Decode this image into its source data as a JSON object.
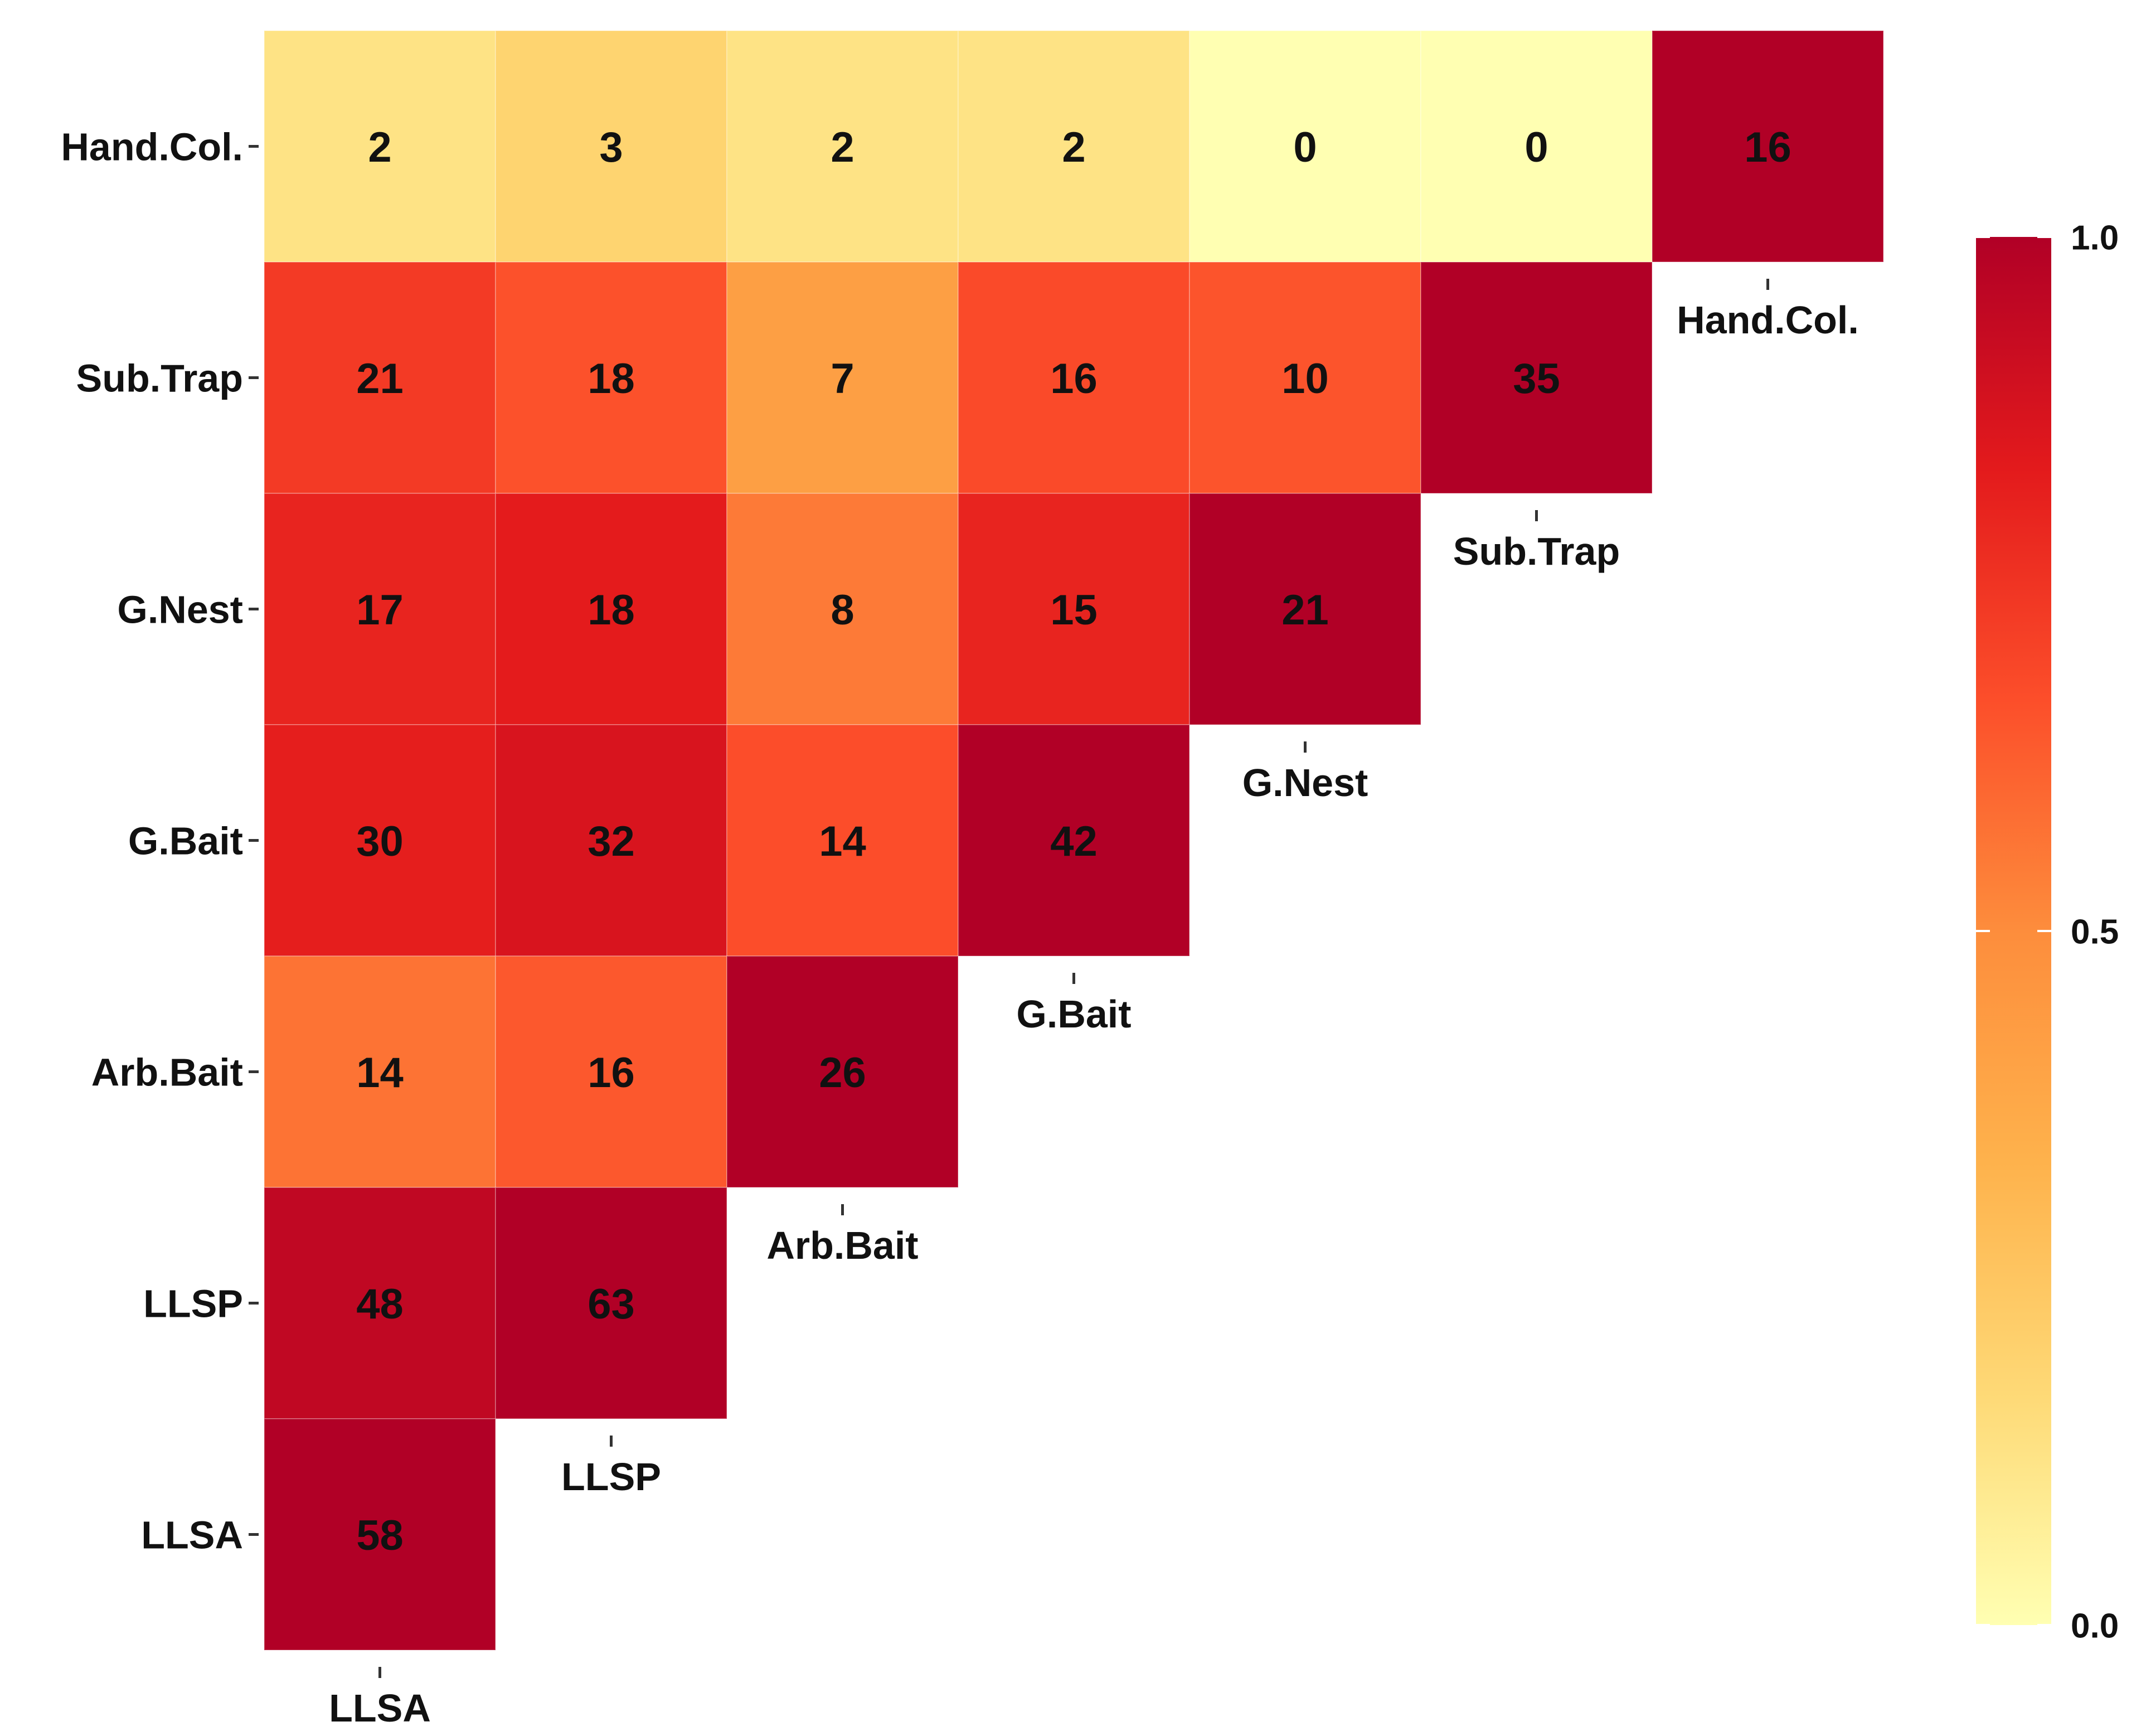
{
  "chart_data": {
    "type": "heatmap",
    "title": "",
    "xlabel": "",
    "ylabel": "",
    "row_labels": [
      "Hand.Col.",
      "Sub.Trap",
      "G.Nest",
      "G.Bait",
      "Arb.Bait",
      "LLSP",
      "LLSA"
    ],
    "col_labels": [
      "LLSA",
      "LLSP",
      "Arb.Bait",
      "G.Bait",
      "G.Nest",
      "Sub.Trap",
      "Hand.Col."
    ],
    "cells": [
      {
        "row": "Hand.Col.",
        "col": "LLSA",
        "label": "2",
        "value": 0.125
      },
      {
        "row": "Hand.Col.",
        "col": "LLSP",
        "label": "3",
        "value": 0.19
      },
      {
        "row": "Hand.Col.",
        "col": "Arb.Bait",
        "label": "2",
        "value": 0.125
      },
      {
        "row": "Hand.Col.",
        "col": "G.Bait",
        "label": "2",
        "value": 0.125
      },
      {
        "row": "Hand.Col.",
        "col": "G.Nest",
        "label": "0",
        "value": 0.0
      },
      {
        "row": "Hand.Col.",
        "col": "Sub.Trap",
        "label": "0",
        "value": 0.0
      },
      {
        "row": "Hand.Col.",
        "col": "Hand.Col.",
        "label": "16",
        "value": 1.0
      },
      {
        "row": "Sub.Trap",
        "col": "LLSA",
        "label": "21",
        "value": 0.73
      },
      {
        "row": "Sub.Trap",
        "col": "LLSP",
        "label": "18",
        "value": 0.66
      },
      {
        "row": "Sub.Trap",
        "col": "Arb.Bait",
        "label": "7",
        "value": 0.42
      },
      {
        "row": "Sub.Trap",
        "col": "G.Bait",
        "label": "16",
        "value": 0.68
      },
      {
        "row": "Sub.Trap",
        "col": "G.Nest",
        "label": "10",
        "value": 0.65
      },
      {
        "row": "Sub.Trap",
        "col": "Sub.Trap",
        "label": "35",
        "value": 1.0
      },
      {
        "row": "G.Nest",
        "col": "LLSA",
        "label": "17",
        "value": 0.8
      },
      {
        "row": "G.Nest",
        "col": "LLSP",
        "label": "18",
        "value": 0.83
      },
      {
        "row": "G.Nest",
        "col": "Arb.Bait",
        "label": "8",
        "value": 0.55
      },
      {
        "row": "G.Nest",
        "col": "G.Bait",
        "label": "15",
        "value": 0.8
      },
      {
        "row": "G.Nest",
        "col": "G.Nest",
        "label": "21",
        "value": 1.0
      },
      {
        "row": "G.Bait",
        "col": "LLSA",
        "label": "30",
        "value": 0.82
      },
      {
        "row": "G.Bait",
        "col": "LLSP",
        "label": "32",
        "value": 0.87
      },
      {
        "row": "G.Bait",
        "col": "Arb.Bait",
        "label": "14",
        "value": 0.67
      },
      {
        "row": "G.Bait",
        "col": "G.Bait",
        "label": "42",
        "value": 1.0
      },
      {
        "row": "Arb.Bait",
        "col": "LLSA",
        "label": "14",
        "value": 0.57
      },
      {
        "row": "Arb.Bait",
        "col": "LLSP",
        "label": "16",
        "value": 0.64
      },
      {
        "row": "Arb.Bait",
        "col": "Arb.Bait",
        "label": "26",
        "value": 1.0
      },
      {
        "row": "LLSP",
        "col": "LLSA",
        "label": "48",
        "value": 0.95
      },
      {
        "row": "LLSP",
        "col": "LLSP",
        "label": "63",
        "value": 1.0
      },
      {
        "row": "LLSA",
        "col": "LLSA",
        "label": "58",
        "value": 1.0
      }
    ],
    "colorbar": {
      "ticks": [
        "0.0",
        "0.5",
        "1.0"
      ],
      "range": [
        0,
        1
      ],
      "colors": [
        "#ffffb2",
        "#fed976",
        "#feb24c",
        "#fd8d3c",
        "#fc4e2a",
        "#e31a1c",
        "#b10026"
      ]
    },
    "grid": false,
    "legend_position": "right"
  }
}
